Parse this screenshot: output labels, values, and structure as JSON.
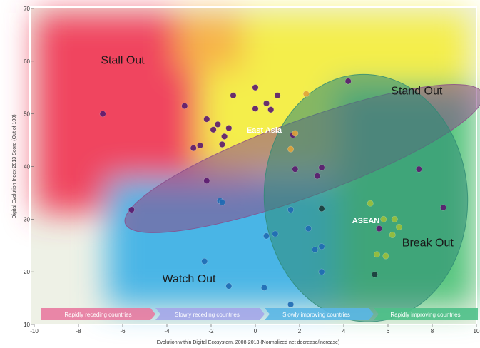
{
  "chart_data": {
    "type": "scatter",
    "title": "",
    "xlabel": "Evolution within Digital Ecosystem, 2008-2013 (Normalized net decrease/increase)",
    "ylabel": "Digital Evolution Index 2013 Score (Out of 100)",
    "xlim": [
      -10,
      10
    ],
    "ylim": [
      10,
      70
    ],
    "xticks": [
      -10,
      -8,
      -6,
      -4,
      -2,
      0,
      2,
      4,
      6,
      8,
      10
    ],
    "yticks": [
      10,
      20,
      30,
      40,
      50,
      60,
      70
    ],
    "grid": false,
    "quadrants": [
      {
        "label": "Stall Out",
        "color": "#f0455e"
      },
      {
        "label": "Stand Out",
        "color": "#f4ef4a"
      },
      {
        "label": "Watch Out",
        "color": "#49b6e6"
      },
      {
        "label": "Break Out",
        "color": "#5fc880"
      }
    ],
    "regions": [
      {
        "label": "East Asia",
        "cx": 2.2,
        "cy": 41.5,
        "rx": 8.6,
        "ry": 7.2,
        "angle": -20,
        "color": "#8a4a88"
      },
      {
        "label": "ASEAN",
        "cx": 5.0,
        "cy": 34.0,
        "rx": 4.6,
        "ry": 23.5,
        "angle": -3,
        "color": "#2e8a74"
      }
    ],
    "bands": [
      {
        "label": "Rapidly receding countries",
        "color": "#e87aa0"
      },
      {
        "label": "Slowly receding countries",
        "color": "#a4a6e8"
      },
      {
        "label": "Slowly improving countries",
        "color": "#5ab6e4"
      },
      {
        "label": "Rapidly improving countries",
        "color": "#4ec088"
      }
    ],
    "series": [
      {
        "color": "#5a1a6e",
        "points": [
          [
            -6.9,
            50
          ],
          [
            -5.6,
            31.8
          ],
          [
            -3.2,
            51.5
          ],
          [
            -2.8,
            43.5
          ],
          [
            -2.5,
            44
          ],
          [
            -2.2,
            49
          ],
          [
            -2.2,
            37.3
          ],
          [
            -1.9,
            47
          ],
          [
            -1.7,
            48
          ],
          [
            -1.5,
            44.2
          ],
          [
            -1.4,
            45.7
          ],
          [
            -1.2,
            47.3
          ],
          [
            0,
            51
          ],
          [
            0.5,
            52
          ],
          [
            0.7,
            50.8
          ],
          [
            1,
            53.5
          ],
          [
            1.7,
            46
          ],
          [
            1.8,
            39.5
          ],
          [
            -1,
            53.5
          ],
          [
            0,
            55
          ],
          [
            2.8,
            38.2
          ],
          [
            3,
            39.8
          ],
          [
            4.2,
            56.2
          ],
          [
            5.6,
            28.2
          ],
          [
            7.4,
            39.5
          ],
          [
            8.5,
            32.2
          ]
        ]
      },
      {
        "color": "#e0a238",
        "points": [
          [
            2.3,
            53.8
          ],
          [
            1.8,
            46.3
          ],
          [
            1.6,
            43.3
          ]
        ]
      },
      {
        "color": "#1f6ab2",
        "points": [
          [
            -2.3,
            22
          ],
          [
            -1.6,
            33.5
          ],
          [
            -1.5,
            33.2
          ],
          [
            -1.2,
            17.3
          ],
          [
            0.4,
            17
          ],
          [
            0.5,
            26.8
          ],
          [
            0.9,
            27.2
          ],
          [
            1.6,
            31.8
          ],
          [
            1.6,
            13.8
          ],
          [
            2.4,
            28.2
          ],
          [
            2.7,
            24.2
          ],
          [
            3,
            24.8
          ],
          [
            3,
            20
          ]
        ]
      },
      {
        "color": "#1a3a3a",
        "points": [
          [
            3,
            32
          ],
          [
            5.4,
            19.5
          ]
        ]
      },
      {
        "color": "#9bbf3a",
        "points": [
          [
            5.5,
            23.3
          ],
          [
            6.2,
            27
          ],
          [
            5.8,
            30
          ],
          [
            6.3,
            30
          ],
          [
            6.5,
            28.5
          ],
          [
            5.9,
            23
          ],
          [
            5.2,
            33
          ]
        ]
      }
    ]
  }
}
